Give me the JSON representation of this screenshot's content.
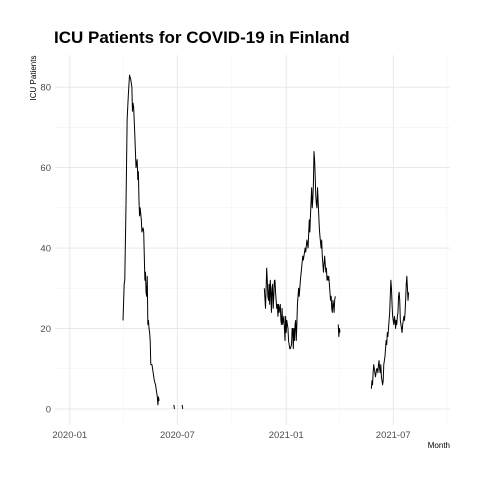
{
  "chart_data": {
    "type": "line",
    "title": "ICU Patients for COVID-19 in Finland",
    "xlabel": "Month",
    "ylabel": "ICU Patients",
    "xlim": [
      "2019-12-07",
      "2021-10-05"
    ],
    "ylim": [
      -4,
      88
    ],
    "x_ticks": [
      {
        "date": "2020-01-01",
        "label": "2020-01"
      },
      {
        "date": "2020-07-01",
        "label": "2020-07"
      },
      {
        "date": "2021-01-01",
        "label": "2021-01"
      },
      {
        "date": "2021-07-01",
        "label": "2021-07"
      }
    ],
    "y_ticks": [
      0,
      20,
      40,
      60,
      80
    ],
    "grid": true,
    "series": [
      {
        "segments": [
          [
            [
              "2020-03-31",
              22
            ],
            [
              "2020-04-02",
              31
            ],
            [
              "2020-04-03",
              32
            ],
            [
              "2020-04-05",
              50
            ],
            [
              "2020-04-07",
              72
            ],
            [
              "2020-04-09",
              78
            ],
            [
              "2020-04-11",
              83
            ],
            [
              "2020-04-13",
              82
            ],
            [
              "2020-04-15",
              80
            ],
            [
              "2020-04-16",
              74
            ],
            [
              "2020-04-17",
              76
            ],
            [
              "2020-04-18",
              75
            ],
            [
              "2020-04-20",
              68
            ],
            [
              "2020-04-22",
              60
            ],
            [
              "2020-04-24",
              62
            ],
            [
              "2020-04-25",
              57
            ],
            [
              "2020-04-26",
              59
            ],
            [
              "2020-04-27",
              52
            ],
            [
              "2020-04-28",
              48
            ],
            [
              "2020-04-29",
              50
            ],
            [
              "2020-05-01",
              47
            ],
            [
              "2020-05-02",
              44
            ],
            [
              "2020-05-04",
              45
            ],
            [
              "2020-05-05",
              44
            ],
            [
              "2020-05-06",
              38
            ],
            [
              "2020-05-07",
              32
            ],
            [
              "2020-05-08",
              34
            ],
            [
              "2020-05-09",
              29
            ],
            [
              "2020-05-10",
              28
            ],
            [
              "2020-05-11",
              33
            ],
            [
              "2020-05-12",
              21
            ],
            [
              "2020-05-13",
              22
            ],
            [
              "2020-05-14",
              20
            ],
            [
              "2020-05-15",
              19
            ],
            [
              "2020-05-16",
              17
            ],
            [
              "2020-05-17",
              11
            ],
            [
              "2020-05-19",
              11
            ],
            [
              "2020-05-20",
              10
            ],
            [
              "2020-05-21",
              9
            ],
            [
              "2020-05-22",
              8
            ],
            [
              "2020-05-23",
              7
            ],
            [
              "2020-05-25",
              6
            ],
            [
              "2020-05-26",
              5
            ],
            [
              "2020-05-27",
              4
            ],
            [
              "2020-05-28",
              3
            ],
            [
              "2020-05-29",
              1
            ],
            [
              "2020-05-30",
              3
            ],
            [
              "2020-05-31",
              2
            ]
          ],
          [
            [
              "2020-06-25",
              1
            ],
            [
              "2020-06-26",
              0
            ]
          ],
          [
            [
              "2020-07-09",
              1
            ],
            [
              "2020-07-10",
              0
            ]
          ],
          [
            [
              "2020-11-25",
              30
            ],
            [
              "2020-11-27",
              25
            ],
            [
              "2020-11-29",
              35
            ],
            [
              "2020-11-30",
              32
            ],
            [
              "2020-12-01",
              28
            ],
            [
              "2020-12-02",
              27
            ],
            [
              "2020-12-03",
              31
            ],
            [
              "2020-12-04",
              26
            ],
            [
              "2020-12-05",
              32
            ],
            [
              "2020-12-06",
              29
            ],
            [
              "2020-12-07",
              24
            ],
            [
              "2020-12-08",
              30
            ],
            [
              "2020-12-09",
              31
            ],
            [
              "2020-12-10",
              25
            ],
            [
              "2020-12-11",
              28
            ],
            [
              "2020-12-12",
              32
            ],
            [
              "2020-12-13",
              32
            ],
            [
              "2020-12-14",
              29
            ],
            [
              "2020-12-15",
              27
            ],
            [
              "2020-12-16",
              25
            ],
            [
              "2020-12-17",
              26
            ],
            [
              "2020-12-18",
              23
            ],
            [
              "2020-12-19",
              26
            ],
            [
              "2020-12-20",
              24
            ],
            [
              "2020-12-21",
              25
            ],
            [
              "2020-12-22",
              26
            ],
            [
              "2020-12-23",
              22
            ],
            [
              "2020-12-24",
              21
            ],
            [
              "2020-12-25",
              25
            ],
            [
              "2020-12-26",
              21
            ],
            [
              "2020-12-28",
              23
            ],
            [
              "2020-12-29",
              20
            ],
            [
              "2020-12-30",
              17
            ],
            [
              "2020-12-31",
              23
            ],
            [
              "2021-01-01",
              19
            ],
            [
              "2021-01-02",
              22
            ],
            [
              "2021-01-03",
              21
            ],
            [
              "2021-01-04",
              20
            ],
            [
              "2021-01-05",
              17
            ],
            [
              "2021-01-06",
              16
            ],
            [
              "2021-01-07",
              15
            ],
            [
              "2021-01-08",
              15
            ],
            [
              "2021-01-10",
              16
            ],
            [
              "2021-01-11",
              20
            ],
            [
              "2021-01-12",
              20
            ],
            [
              "2021-01-13",
              15
            ],
            [
              "2021-01-14",
              20
            ],
            [
              "2021-01-15",
              17
            ],
            [
              "2021-01-16",
              21
            ],
            [
              "2021-01-17",
              22
            ],
            [
              "2021-01-18",
              17
            ],
            [
              "2021-01-19",
              21
            ],
            [
              "2021-01-20",
              26
            ],
            [
              "2021-01-22",
              30
            ],
            [
              "2021-01-23",
              28
            ],
            [
              "2021-01-25",
              32
            ],
            [
              "2021-01-27",
              35
            ],
            [
              "2021-01-29",
              38
            ],
            [
              "2021-01-30",
              37
            ],
            [
              "2021-01-31",
              38
            ],
            [
              "2021-02-02",
              40
            ],
            [
              "2021-02-03",
              39
            ],
            [
              "2021-02-05",
              42
            ],
            [
              "2021-02-07",
              40
            ],
            [
              "2021-02-09",
              47
            ],
            [
              "2021-02-10",
              44
            ],
            [
              "2021-02-11",
              48
            ],
            [
              "2021-02-13",
              55
            ],
            [
              "2021-02-14",
              50
            ],
            [
              "2021-02-15",
              52
            ],
            [
              "2021-02-16",
              56
            ],
            [
              "2021-02-17",
              64
            ],
            [
              "2021-02-18",
              62
            ],
            [
              "2021-02-19",
              58
            ],
            [
              "2021-02-20",
              53
            ],
            [
              "2021-02-21",
              51
            ],
            [
              "2021-02-22",
              50
            ],
            [
              "2021-02-23",
              55
            ],
            [
              "2021-02-26",
              45
            ],
            [
              "2021-02-27",
              43
            ],
            [
              "2021-03-01",
              40
            ],
            [
              "2021-03-02",
              42
            ],
            [
              "2021-03-03",
              38
            ],
            [
              "2021-03-04",
              36
            ],
            [
              "2021-03-05",
              34
            ],
            [
              "2021-03-06",
              36
            ],
            [
              "2021-03-07",
              38
            ],
            [
              "2021-03-08",
              36
            ],
            [
              "2021-03-09",
              34
            ],
            [
              "2021-03-10",
              35
            ],
            [
              "2021-03-11",
              32
            ],
            [
              "2021-03-12",
              33
            ],
            [
              "2021-03-13",
              32
            ],
            [
              "2021-03-14",
              33
            ],
            [
              "2021-03-16",
              29
            ],
            [
              "2021-03-17",
              27
            ],
            [
              "2021-03-18",
              28
            ],
            [
              "2021-03-19",
              25
            ],
            [
              "2021-03-20",
              24
            ],
            [
              "2021-03-21",
              27
            ],
            [
              "2021-03-22",
              26
            ],
            [
              "2021-03-23",
              24
            ],
            [
              "2021-03-24",
              27
            ],
            [
              "2021-03-25",
              28
            ]
          ],
          [
            [
              "2021-03-30",
              21
            ],
            [
              "2021-03-31",
              18
            ],
            [
              "2021-04-01",
              20
            ],
            [
              "2021-04-02",
              19
            ]
          ],
          [
            [
              "2021-05-25",
              5
            ],
            [
              "2021-05-26",
              7
            ],
            [
              "2021-05-27",
              6
            ],
            [
              "2021-05-28",
              9
            ],
            [
              "2021-05-29",
              11
            ],
            [
              "2021-05-30",
              10
            ],
            [
              "2021-05-31",
              9
            ],
            [
              "2021-06-01",
              8
            ],
            [
              "2021-06-02",
              9
            ],
            [
              "2021-06-03",
              10
            ],
            [
              "2021-06-04",
              10
            ],
            [
              "2021-06-05",
              9
            ],
            [
              "2021-06-06",
              11
            ],
            [
              "2021-06-07",
              12
            ],
            [
              "2021-06-08",
              10
            ],
            [
              "2021-06-09",
              9
            ],
            [
              "2021-06-10",
              11
            ],
            [
              "2021-06-11",
              8
            ],
            [
              "2021-06-12",
              7
            ],
            [
              "2021-06-13",
              6
            ],
            [
              "2021-06-14",
              7
            ],
            [
              "2021-06-15",
              11
            ],
            [
              "2021-06-16",
              12
            ],
            [
              "2021-06-17",
              13
            ],
            [
              "2021-06-18",
              15
            ],
            [
              "2021-06-19",
              17
            ],
            [
              "2021-06-20",
              16
            ],
            [
              "2021-06-21",
              19
            ],
            [
              "2021-06-22",
              18
            ],
            [
              "2021-06-23",
              20
            ],
            [
              "2021-06-24",
              22
            ],
            [
              "2021-06-25",
              24
            ],
            [
              "2021-06-26",
              28
            ],
            [
              "2021-06-27",
              32
            ],
            [
              "2021-06-28",
              30
            ],
            [
              "2021-06-29",
              26
            ],
            [
              "2021-06-30",
              23
            ],
            [
              "2021-07-01",
              22
            ],
            [
              "2021-07-02",
              21
            ],
            [
              "2021-07-03",
              23
            ],
            [
              "2021-07-04",
              22
            ],
            [
              "2021-07-05",
              20
            ],
            [
              "2021-07-06",
              22
            ],
            [
              "2021-07-07",
              21
            ],
            [
              "2021-07-08",
              23
            ],
            [
              "2021-07-09",
              24
            ],
            [
              "2021-07-10",
              28
            ],
            [
              "2021-07-11",
              29
            ],
            [
              "2021-07-12",
              27
            ],
            [
              "2021-07-13",
              22
            ],
            [
              "2021-07-14",
              21
            ],
            [
              "2021-07-15",
              20
            ],
            [
              "2021-07-16",
              19
            ],
            [
              "2021-07-17",
              21
            ],
            [
              "2021-07-18",
              22
            ],
            [
              "2021-07-19",
              23
            ],
            [
              "2021-07-20",
              22
            ],
            [
              "2021-07-21",
              24
            ],
            [
              "2021-07-22",
              27
            ],
            [
              "2021-07-23",
              31
            ],
            [
              "2021-07-24",
              33
            ],
            [
              "2021-07-25",
              30
            ],
            [
              "2021-07-26",
              27
            ],
            [
              "2021-07-27",
              29
            ]
          ]
        ]
      }
    ]
  }
}
